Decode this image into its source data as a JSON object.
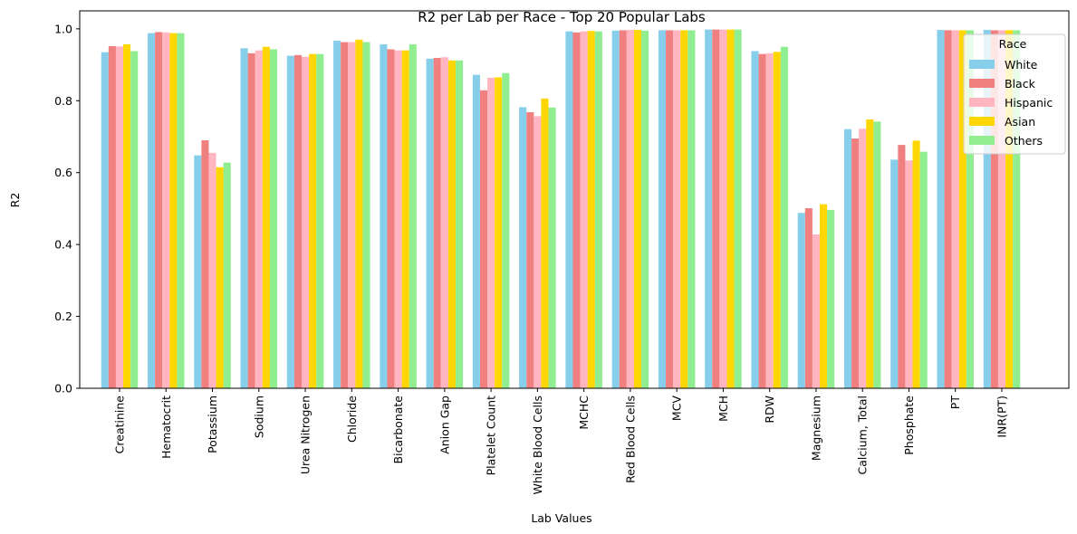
{
  "chart_data": {
    "type": "bar",
    "title": "R2 per Lab per Race - Top 20 Popular Labs",
    "xlabel": "Lab Values",
    "ylabel": "R2",
    "ylim": [
      0,
      1.05
    ],
    "yticks": [
      0.0,
      0.2,
      0.4,
      0.6,
      0.8,
      1.0
    ],
    "ytick_labels": [
      "0.0",
      "0.2",
      "0.4",
      "0.6",
      "0.8",
      "1.0"
    ],
    "grid": false,
    "legend": {
      "title": "Race",
      "placement": "top-right"
    },
    "categories": [
      "Creatinine",
      "Hematocrit",
      "Potassium",
      "Sodium",
      "Urea Nitrogen",
      "Chloride",
      "Bicarbonate",
      "Anion Gap",
      "Platelet Count",
      "White Blood Cells",
      "MCHC",
      "Red Blood Cells",
      "MCV",
      "MCH",
      "RDW",
      "Magnesium",
      "Calcium, Total",
      "Phosphate",
      "PT",
      "INR(PT)"
    ],
    "series": [
      {
        "name": "White",
        "color": "#87ceeb",
        "values": [
          0.935,
          0.988,
          0.648,
          0.946,
          0.925,
          0.967,
          0.957,
          0.917,
          0.872,
          0.782,
          0.993,
          0.995,
          0.996,
          0.998,
          0.938,
          0.488,
          0.721,
          0.636,
          0.997,
          0.997
        ]
      },
      {
        "name": "Black",
        "color": "#f08080",
        "values": [
          0.952,
          0.991,
          0.69,
          0.932,
          0.927,
          0.963,
          0.943,
          0.919,
          0.829,
          0.768,
          0.99,
          0.996,
          0.996,
          0.998,
          0.93,
          0.501,
          0.695,
          0.677,
          0.996,
          0.996
        ]
      },
      {
        "name": "Hispanic",
        "color": "#ffb6c1",
        "values": [
          0.951,
          0.99,
          0.655,
          0.94,
          0.922,
          0.963,
          0.94,
          0.921,
          0.864,
          0.757,
          0.993,
          0.997,
          0.996,
          0.998,
          0.932,
          0.428,
          0.722,
          0.634,
          0.996,
          0.996
        ]
      },
      {
        "name": "Asian",
        "color": "#ffd700",
        "values": [
          0.957,
          0.988,
          0.615,
          0.95,
          0.93,
          0.97,
          0.94,
          0.912,
          0.865,
          0.806,
          0.994,
          0.997,
          0.996,
          0.998,
          0.936,
          0.512,
          0.748,
          0.689,
          0.996,
          0.996
        ]
      },
      {
        "name": "Others",
        "color": "#90ee90",
        "values": [
          0.938,
          0.988,
          0.628,
          0.943,
          0.93,
          0.963,
          0.957,
          0.912,
          0.877,
          0.781,
          0.993,
          0.995,
          0.996,
          0.998,
          0.95,
          0.496,
          0.742,
          0.658,
          0.996,
          0.996
        ]
      }
    ]
  }
}
